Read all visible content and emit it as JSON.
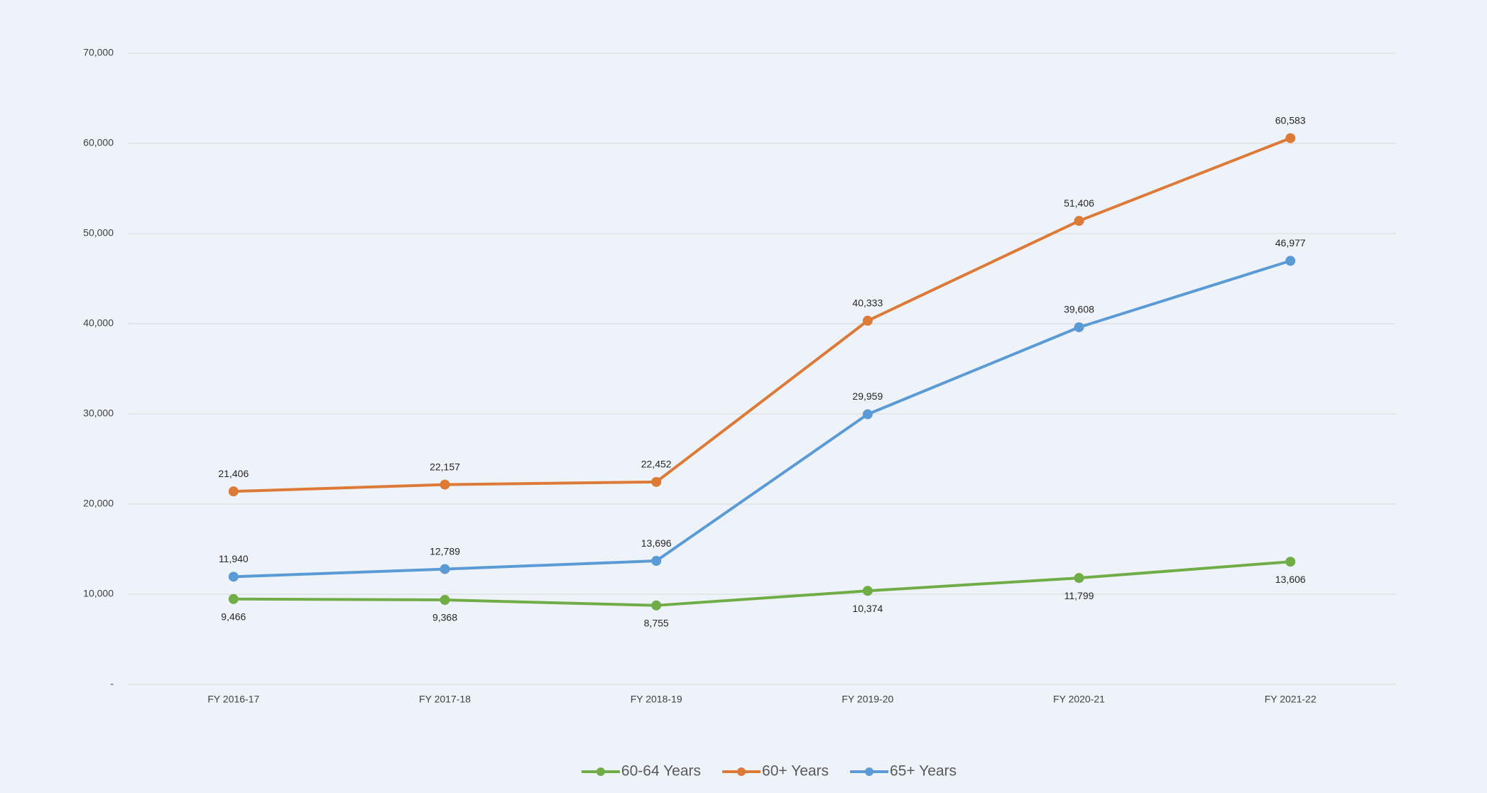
{
  "chart_data": {
    "type": "line",
    "categories": [
      "FY 2016-17",
      "FY 2017-18",
      "FY 2018-19",
      "FY 2019-20",
      "FY 2020-21",
      "FY 2021-22"
    ],
    "series": [
      {
        "name": "60-64 Years",
        "color": "#70ad47",
        "values": [
          9466,
          9368,
          8755,
          10374,
          11799,
          13606
        ],
        "value_labels": [
          "9,466",
          "9,368",
          "8,755",
          "10,374",
          "11,799",
          "13,606"
        ]
      },
      {
        "name": "60+ Years",
        "color": "#dd7a38",
        "values": [
          21406,
          22157,
          22452,
          40333,
          51406,
          60583
        ],
        "value_labels": [
          "21,406",
          "22,157",
          "22,452",
          "40,333",
          "51,406",
          "60,583"
        ]
      },
      {
        "name": "65+ Years",
        "color": "#5b9bd5",
        "values": [
          11940,
          12789,
          13696,
          29959,
          39608,
          46977
        ],
        "value_labels": [
          "11,940",
          "12,789",
          "13,696",
          "29,959",
          "39,608",
          "46,977"
        ]
      }
    ],
    "ylim": [
      0,
      70000
    ],
    "yticks": [
      {
        "value": 0,
        "label": "-"
      },
      {
        "value": 10000,
        "label": "10,000"
      },
      {
        "value": 20000,
        "label": "20,000"
      },
      {
        "value": 30000,
        "label": "30,000"
      },
      {
        "value": 40000,
        "label": "40,000"
      },
      {
        "value": 50000,
        "label": "50,000"
      },
      {
        "value": 60000,
        "label": "60,000"
      },
      {
        "value": 70000,
        "label": "70,000"
      }
    ],
    "grid": true,
    "legend": "bottom"
  }
}
